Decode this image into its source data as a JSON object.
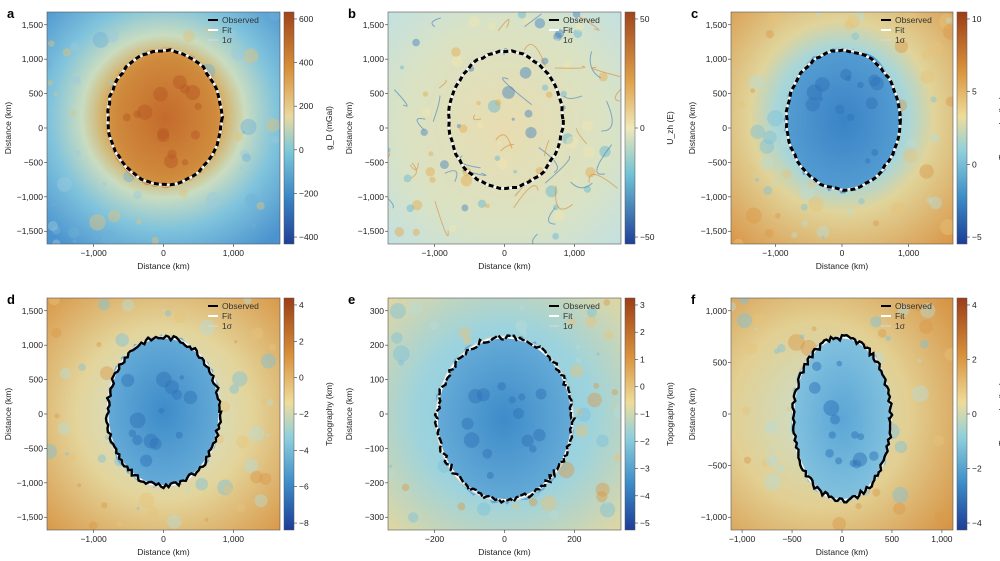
{
  "legend": {
    "observed": "Observed",
    "fit": "Fit",
    "sigma": "1σ"
  },
  "xlabel": "Distance (km)",
  "ylabel": "Distance (km)",
  "panels": [
    {
      "letter": "a",
      "cbar_label": "g_D (mGal)",
      "cbar_ticks": [
        "600",
        "400",
        "200",
        "0",
        "−200",
        "−400"
      ],
      "xticks": [
        "−1,000",
        "0",
        "1,000"
      ],
      "yticks": [
        "1,500",
        "1,000",
        "500",
        "0",
        "−500",
        "−1,000",
        "−1,500"
      ],
      "palette": "gravity"
    },
    {
      "letter": "b",
      "cbar_label": "U_zh (E)",
      "cbar_ticks": [
        "50",
        "0",
        "−50"
      ],
      "xticks": [
        "−1,000",
        "0",
        "1,000"
      ],
      "yticks": [
        "1,500",
        "1,000",
        "500",
        "0",
        "−500",
        "−1,000",
        "−1,500"
      ],
      "palette": "gradient"
    },
    {
      "letter": "c",
      "cbar_label": "Topography (km)",
      "cbar_ticks": [
        "10",
        "5",
        "0",
        "−5"
      ],
      "xticks": [
        "−1,000",
        "0",
        "1,000"
      ],
      "yticks": [
        "1,500",
        "1,000",
        "500",
        "0",
        "−500",
        "−1,000",
        "−1,500"
      ],
      "palette": "topo"
    },
    {
      "letter": "d",
      "cbar_label": "Topography (km)",
      "cbar_ticks": [
        "4",
        "2",
        "0",
        "−2",
        "−4",
        "−6",
        "−8"
      ],
      "xticks": [
        "−1,000",
        "0",
        "1,000"
      ],
      "yticks": [
        "1,500",
        "1,000",
        "500",
        "0",
        "−500",
        "−1,000",
        "−1,500"
      ],
      "palette": "topo"
    },
    {
      "letter": "e",
      "cbar_label": "Topography (km)",
      "cbar_ticks": [
        "3",
        "2",
        "1",
        "0",
        "−1",
        "−2",
        "−3",
        "−4",
        "−5"
      ],
      "xticks": [
        "−200",
        "0",
        "200"
      ],
      "yticks": [
        "300",
        "200",
        "100",
        "0",
        "−100",
        "−200",
        "−300"
      ],
      "palette": "topo"
    },
    {
      "letter": "f",
      "cbar_label": "Topography (km)",
      "cbar_ticks": [
        "4",
        "2",
        "0",
        "−2",
        "−4"
      ],
      "xticks": [
        "−1,000",
        "−500",
        "0",
        "500",
        "1,000"
      ],
      "yticks": [
        "1,000",
        "500",
        "0",
        "−500",
        "−1,000"
      ],
      "palette": "topo"
    }
  ],
  "colors": {
    "observed": "#000000",
    "fit": "#ffffff",
    "sigma": "#d9d9d9"
  }
}
